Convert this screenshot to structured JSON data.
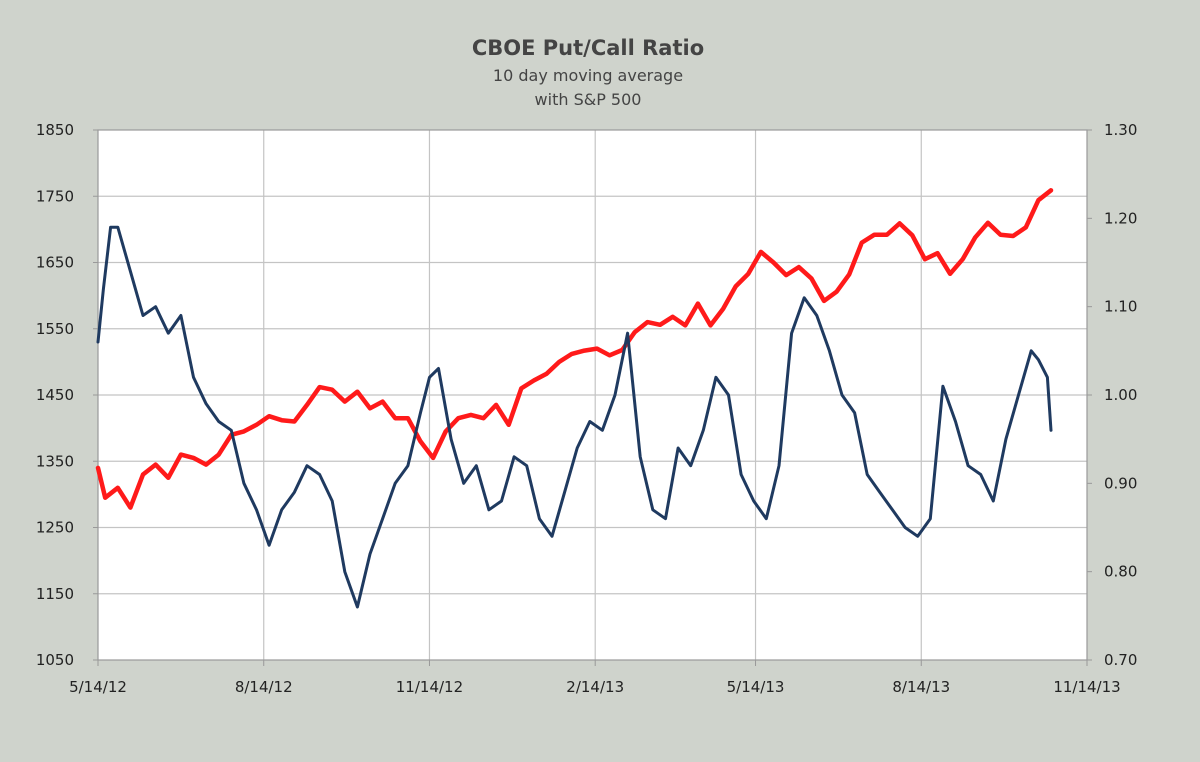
{
  "chart_data": {
    "type": "line",
    "title": "CBOE Put/Call Ratio",
    "subtitle_lines": [
      "10 day moving average",
      "with S&P 500"
    ],
    "x_axis": {
      "type": "date",
      "min": "2012-05-14",
      "max": "2013-11-14",
      "ticks": [
        {
          "date": "2012-05-14",
          "label": "5/14/12"
        },
        {
          "date": "2012-08-14",
          "label": "8/14/12"
        },
        {
          "date": "2012-11-14",
          "label": "11/14/12"
        },
        {
          "date": "2013-02-14",
          "label": "2/14/13"
        },
        {
          "date": "2013-05-14",
          "label": "5/14/13"
        },
        {
          "date": "2013-08-14",
          "label": "8/14/13"
        },
        {
          "date": "2013-11-14",
          "label": "11/14/13"
        }
      ]
    },
    "y_left": {
      "min": 1050,
      "max": 1850,
      "ticks": [
        "1850",
        "1750",
        "1650",
        "1550",
        "1450",
        "1350",
        "1250",
        "1150",
        "1050"
      ]
    },
    "y_right": {
      "min": 0.7,
      "max": 1.3,
      "ticks": [
        "1.30",
        "1.20",
        "1.10",
        "1.00",
        "0.90",
        "0.80",
        "0.70"
      ]
    },
    "grid": true,
    "legend": "none",
    "series": [
      {
        "axis": "left",
        "color": "#ff1a1a",
        "points": [
          [
            "2012-05-14",
            1340
          ],
          [
            "2012-05-18",
            1295
          ],
          [
            "2012-05-25",
            1310
          ],
          [
            "2012-06-01",
            1280
          ],
          [
            "2012-06-08",
            1330
          ],
          [
            "2012-06-15",
            1345
          ],
          [
            "2012-06-22",
            1325
          ],
          [
            "2012-06-29",
            1360
          ],
          [
            "2012-07-06",
            1355
          ],
          [
            "2012-07-13",
            1345
          ],
          [
            "2012-07-20",
            1360
          ],
          [
            "2012-07-27",
            1390
          ],
          [
            "2012-08-03",
            1395
          ],
          [
            "2012-08-10",
            1405
          ],
          [
            "2012-08-17",
            1418
          ],
          [
            "2012-08-24",
            1412
          ],
          [
            "2012-08-31",
            1410
          ],
          [
            "2012-09-07",
            1435
          ],
          [
            "2012-09-14",
            1462
          ],
          [
            "2012-09-21",
            1458
          ],
          [
            "2012-09-28",
            1440
          ],
          [
            "2012-10-05",
            1455
          ],
          [
            "2012-10-12",
            1430
          ],
          [
            "2012-10-19",
            1440
          ],
          [
            "2012-10-26",
            1415
          ],
          [
            "2012-11-02",
            1415
          ],
          [
            "2012-11-09",
            1380
          ],
          [
            "2012-11-16",
            1355
          ],
          [
            "2012-11-23",
            1395
          ],
          [
            "2012-11-30",
            1415
          ],
          [
            "2012-12-07",
            1420
          ],
          [
            "2012-12-14",
            1415
          ],
          [
            "2012-12-21",
            1435
          ],
          [
            "2012-12-28",
            1405
          ],
          [
            "2013-01-04",
            1460
          ],
          [
            "2013-01-11",
            1472
          ],
          [
            "2013-01-18",
            1482
          ],
          [
            "2013-01-25",
            1500
          ],
          [
            "2013-02-01",
            1512
          ],
          [
            "2013-02-08",
            1517
          ],
          [
            "2013-02-15",
            1520
          ],
          [
            "2013-02-22",
            1510
          ],
          [
            "2013-03-01",
            1518
          ],
          [
            "2013-03-08",
            1545
          ],
          [
            "2013-03-15",
            1560
          ],
          [
            "2013-03-22",
            1556
          ],
          [
            "2013-03-29",
            1568
          ],
          [
            "2013-04-05",
            1555
          ],
          [
            "2013-04-12",
            1588
          ],
          [
            "2013-04-19",
            1555
          ],
          [
            "2013-04-26",
            1580
          ],
          [
            "2013-05-03",
            1614
          ],
          [
            "2013-05-10",
            1633
          ],
          [
            "2013-05-17",
            1666
          ],
          [
            "2013-05-24",
            1650
          ],
          [
            "2013-05-31",
            1631
          ],
          [
            "2013-06-07",
            1643
          ],
          [
            "2013-06-14",
            1626
          ],
          [
            "2013-06-21",
            1592
          ],
          [
            "2013-06-28",
            1606
          ],
          [
            "2013-07-05",
            1632
          ],
          [
            "2013-07-12",
            1680
          ],
          [
            "2013-07-19",
            1692
          ],
          [
            "2013-07-26",
            1692
          ],
          [
            "2013-08-02",
            1709
          ],
          [
            "2013-08-09",
            1691
          ],
          [
            "2013-08-16",
            1655
          ],
          [
            "2013-08-23",
            1664
          ],
          [
            "2013-08-30",
            1633
          ],
          [
            "2013-09-06",
            1655
          ],
          [
            "2013-09-13",
            1688
          ],
          [
            "2013-09-20",
            1710
          ],
          [
            "2013-09-27",
            1692
          ],
          [
            "2013-10-04",
            1690
          ],
          [
            "2013-10-11",
            1703
          ],
          [
            "2013-10-18",
            1744
          ],
          [
            "2013-10-25",
            1759
          ]
        ]
      },
      {
        "axis": "right",
        "color": "#1f3a60",
        "points": [
          [
            "2012-05-14",
            1.06
          ],
          [
            "2012-05-17",
            1.12
          ],
          [
            "2012-05-21",
            1.19
          ],
          [
            "2012-05-25",
            1.19
          ],
          [
            "2012-06-01",
            1.14
          ],
          [
            "2012-06-08",
            1.09
          ],
          [
            "2012-06-15",
            1.1
          ],
          [
            "2012-06-22",
            1.07
          ],
          [
            "2012-06-29",
            1.09
          ],
          [
            "2012-07-06",
            1.02
          ],
          [
            "2012-07-13",
            0.99
          ],
          [
            "2012-07-20",
            0.97
          ],
          [
            "2012-07-27",
            0.96
          ],
          [
            "2012-08-03",
            0.9
          ],
          [
            "2012-08-10",
            0.87
          ],
          [
            "2012-08-17",
            0.83
          ],
          [
            "2012-08-24",
            0.87
          ],
          [
            "2012-08-31",
            0.89
          ],
          [
            "2012-09-07",
            0.92
          ],
          [
            "2012-09-14",
            0.91
          ],
          [
            "2012-09-21",
            0.88
          ],
          [
            "2012-09-28",
            0.8
          ],
          [
            "2012-10-05",
            0.76
          ],
          [
            "2012-10-12",
            0.82
          ],
          [
            "2012-10-19",
            0.86
          ],
          [
            "2012-10-26",
            0.9
          ],
          [
            "2012-11-02",
            0.92
          ],
          [
            "2012-11-09",
            0.98
          ],
          [
            "2012-11-14",
            1.02
          ],
          [
            "2012-11-19",
            1.03
          ],
          [
            "2012-11-26",
            0.95
          ],
          [
            "2012-12-03",
            0.9
          ],
          [
            "2012-12-10",
            0.92
          ],
          [
            "2012-12-17",
            0.87
          ],
          [
            "2012-12-24",
            0.88
          ],
          [
            "2012-12-31",
            0.93
          ],
          [
            "2013-01-07",
            0.92
          ],
          [
            "2013-01-14",
            0.86
          ],
          [
            "2013-01-21",
            0.84
          ],
          [
            "2013-01-28",
            0.89
          ],
          [
            "2013-02-04",
            0.94
          ],
          [
            "2013-02-11",
            0.97
          ],
          [
            "2013-02-18",
            0.96
          ],
          [
            "2013-02-25",
            1.0
          ],
          [
            "2013-03-04",
            1.07
          ],
          [
            "2013-03-11",
            0.93
          ],
          [
            "2013-03-18",
            0.87
          ],
          [
            "2013-03-25",
            0.86
          ],
          [
            "2013-04-01",
            0.94
          ],
          [
            "2013-04-08",
            0.92
          ],
          [
            "2013-04-15",
            0.96
          ],
          [
            "2013-04-22",
            1.02
          ],
          [
            "2013-04-29",
            1.0
          ],
          [
            "2013-05-06",
            0.91
          ],
          [
            "2013-05-13",
            0.88
          ],
          [
            "2013-05-20",
            0.86
          ],
          [
            "2013-05-27",
            0.92
          ],
          [
            "2013-06-03",
            1.07
          ],
          [
            "2013-06-10",
            1.11
          ],
          [
            "2013-06-17",
            1.09
          ],
          [
            "2013-06-24",
            1.05
          ],
          [
            "2013-07-01",
            1.0
          ],
          [
            "2013-07-08",
            0.98
          ],
          [
            "2013-07-15",
            0.91
          ],
          [
            "2013-07-22",
            0.89
          ],
          [
            "2013-07-29",
            0.87
          ],
          [
            "2013-08-05",
            0.85
          ],
          [
            "2013-08-12",
            0.84
          ],
          [
            "2013-08-19",
            0.86
          ],
          [
            "2013-08-26",
            1.01
          ],
          [
            "2013-09-02",
            0.97
          ],
          [
            "2013-09-09",
            0.92
          ],
          [
            "2013-09-16",
            0.91
          ],
          [
            "2013-09-23",
            0.88
          ],
          [
            "2013-09-30",
            0.95
          ],
          [
            "2013-10-07",
            1.0
          ],
          [
            "2013-10-14",
            1.05
          ],
          [
            "2013-10-18",
            1.04
          ],
          [
            "2013-10-23",
            1.02
          ],
          [
            "2013-10-25",
            0.96
          ]
        ]
      }
    ]
  }
}
